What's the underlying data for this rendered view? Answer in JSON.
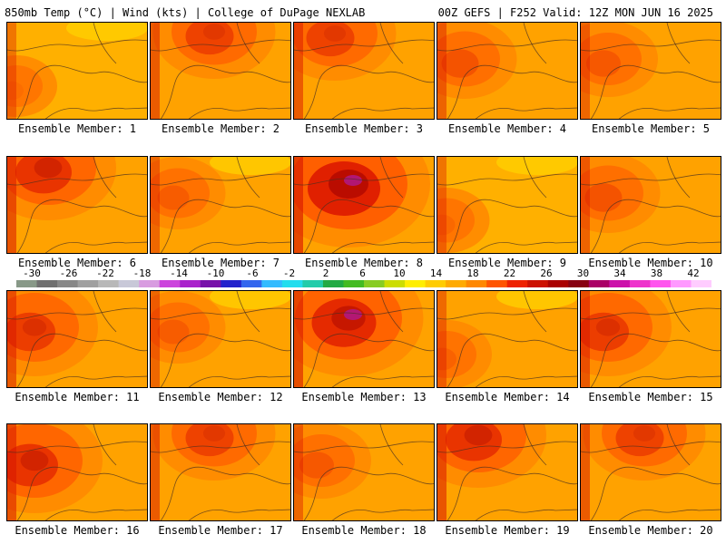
{
  "header": {
    "title_left": "850mb Temp (°C) | Wind (kts) | College of DuPage NEXLAB",
    "title_right": "00Z GEFS | F252 Valid: 12Z MON JUN 16 2025"
  },
  "panels": [
    {
      "label": "Ensemble Member: 1",
      "hot": 0.1,
      "style": "cool"
    },
    {
      "label": "Ensemble Member: 2",
      "hot": 0.55,
      "style": "ne"
    },
    {
      "label": "Ensemble Member: 3",
      "hot": 0.55,
      "style": "nw"
    },
    {
      "label": "Ensemble Member: 4",
      "hot": 0.35,
      "style": "w"
    },
    {
      "label": "Ensemble Member: 5",
      "hot": 0.3,
      "style": "w"
    },
    {
      "label": "Ensemble Member: 6",
      "hot": 0.7,
      "style": "nw"
    },
    {
      "label": "Ensemble Member: 7",
      "hot": 0.25,
      "style": "w"
    },
    {
      "label": "Ensemble Member: 8",
      "hot": 1.0,
      "style": "c"
    },
    {
      "label": "Ensemble Member: 9",
      "hot": 0.15,
      "style": "cool"
    },
    {
      "label": "Ensemble Member: 10",
      "hot": 0.35,
      "style": "w"
    },
    {
      "label": "Ensemble Member: 11",
      "hot": 0.6,
      "style": "w"
    },
    {
      "label": "Ensemble Member: 12",
      "hot": 0.25,
      "style": "w"
    },
    {
      "label": "Ensemble Member: 13",
      "hot": 0.85,
      "style": "c"
    },
    {
      "label": "Ensemble Member: 14",
      "hot": 0.2,
      "style": "cool"
    },
    {
      "label": "Ensemble Member: 15",
      "hot": 0.6,
      "style": "w"
    },
    {
      "label": "Ensemble Member: 16",
      "hot": 0.7,
      "style": "w"
    },
    {
      "label": "Ensemble Member: 17",
      "hot": 0.55,
      "style": "ne"
    },
    {
      "label": "Ensemble Member: 18",
      "hot": 0.3,
      "style": "w"
    },
    {
      "label": "Ensemble Member: 19",
      "hot": 0.7,
      "style": "nw"
    },
    {
      "label": "Ensemble Member: 20",
      "hot": 0.55,
      "style": "ne"
    }
  ],
  "colorbar": {
    "units": "°C",
    "ticks": [
      "-30",
      "-26",
      "-22",
      "-18",
      "-14",
      "-10",
      "-6",
      "-2",
      "2",
      "6",
      "10",
      "14",
      "18",
      "22",
      "26",
      "30",
      "34",
      "38",
      "42"
    ],
    "colors": [
      "#889988",
      "#707070",
      "#888888",
      "#a0a0a0",
      "#b8b8b8",
      "#c8c8d8",
      "#d89ce0",
      "#cc44dd",
      "#aa22cc",
      "#7711aa",
      "#2222cc",
      "#3366ee",
      "#33bbff",
      "#22ddee",
      "#22ccaa",
      "#22aa44",
      "#44bb22",
      "#88cc22",
      "#ccdd00",
      "#ffee00",
      "#ffcc00",
      "#ffaa00",
      "#ff8800",
      "#ff5500",
      "#ee2200",
      "#cc1100",
      "#aa0000",
      "#880011",
      "#aa0066",
      "#cc11aa",
      "#ee33cc",
      "#ff55ee",
      "#ff99ff",
      "#ffccff"
    ]
  }
}
